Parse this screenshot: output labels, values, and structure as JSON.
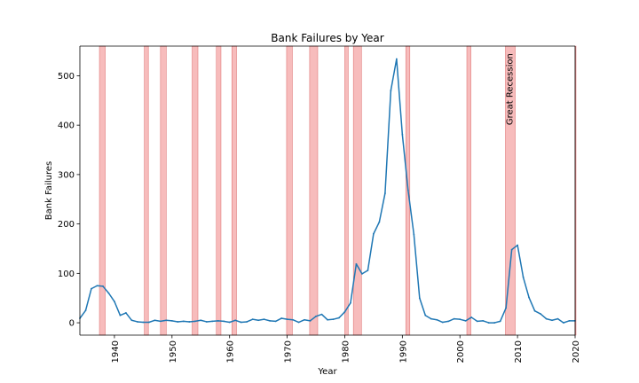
{
  "chart_data": {
    "type": "line",
    "title": "Bank Failures by Year",
    "xlabel": "Year",
    "ylabel": "Bank Failures",
    "xlim": [
      1934,
      2020
    ],
    "ylim": [
      -25,
      560
    ],
    "xticks": [
      1940,
      1950,
      1960,
      1970,
      1980,
      1990,
      2000,
      2010,
      2020
    ],
    "yticks": [
      0,
      100,
      200,
      300,
      400,
      500
    ],
    "grid": false,
    "line_color": "#1f77b4",
    "band_color": "#f4a6a6",
    "annotation": {
      "text": "Great Recession",
      "x": 2008.5,
      "y": 400
    },
    "recessions": [
      [
        1937.4,
        1938.4
      ],
      [
        1945.2,
        1945.9
      ],
      [
        1948.0,
        1949.0
      ],
      [
        1953.5,
        1954.5
      ],
      [
        1957.7,
        1958.5
      ],
      [
        1960.4,
        1961.2
      ],
      [
        1969.9,
        1970.9
      ],
      [
        1973.9,
        1975.3
      ],
      [
        1980.0,
        1980.6
      ],
      [
        1981.5,
        1982.9
      ],
      [
        1990.6,
        1991.3
      ],
      [
        2001.2,
        2001.9
      ],
      [
        2007.9,
        2009.6
      ],
      [
        2020.0,
        2020.3
      ]
    ],
    "series": [
      {
        "x": [
          1934,
          1935,
          1936,
          1937,
          1938,
          1939,
          1940,
          1941,
          1942,
          1943,
          1944,
          1945,
          1946,
          1947,
          1948,
          1949,
          1950,
          1951,
          1952,
          1953,
          1954,
          1955,
          1956,
          1957,
          1958,
          1959,
          1960,
          1961,
          1962,
          1963,
          1964,
          1965,
          1966,
          1967,
          1968,
          1969,
          1970,
          1971,
          1972,
          1973,
          1974,
          1975,
          1976,
          1977,
          1978,
          1979,
          1980,
          1981,
          1982,
          1983,
          1984,
          1985,
          1986,
          1987,
          1988,
          1989,
          1990,
          1991,
          1992,
          1993,
          1994,
          1995,
          1996,
          1997,
          1998,
          1999,
          2000,
          2001,
          2002,
          2003,
          2004,
          2005,
          2006,
          2007,
          2008,
          2009,
          2010,
          2011,
          2012,
          2013,
          2014,
          2015,
          2016,
          2017,
          2018,
          2019,
          2020
        ],
        "values": [
          9,
          25,
          69,
          75,
          74,
          60,
          43,
          15,
          20,
          5,
          2,
          1,
          1,
          5,
          3,
          5,
          4,
          2,
          3,
          2,
          3,
          5,
          2,
          3,
          4,
          3,
          1,
          5,
          1,
          2,
          7,
          5,
          7,
          4,
          3,
          9,
          7,
          6,
          1,
          6,
          4,
          13,
          17,
          6,
          7,
          10,
          22,
          40,
          119,
          99,
          106,
          180,
          204,
          262,
          470,
          534,
          381,
          268,
          179,
          50,
          15,
          8,
          6,
          1,
          3,
          8,
          7,
          4,
          11,
          3,
          4,
          0,
          0,
          3,
          30,
          148,
          157,
          92,
          51,
          24,
          18,
          8,
          5,
          8,
          0,
          4,
          4
        ]
      }
    ]
  }
}
